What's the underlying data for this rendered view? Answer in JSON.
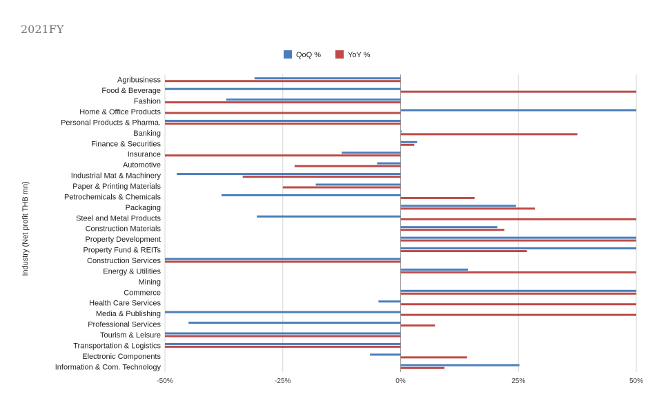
{
  "chart_data": {
    "type": "bar",
    "orientation": "horizontal",
    "title": "2021FY",
    "xlabel": "",
    "ylabel": "Industry (Net profit THB mn)",
    "xlim": [
      -0.5,
      0.5
    ],
    "xticks": [
      -0.5,
      -0.25,
      0,
      0.25,
      0.5
    ],
    "xtick_labels": [
      "-50%",
      "-25%",
      "0%",
      "25%",
      "50%"
    ],
    "grid": "vertical",
    "legend_position": "top",
    "categories": [
      "Agribusiness",
      "Food & Beverage",
      "Fashion",
      "Home & Office Products",
      "Personal Products & Pharma.",
      "Banking",
      "Finance & Securities",
      "Insurance",
      "Automotive",
      "Industrial Mat & Machinery",
      "Paper & Printing Materials",
      "Petrochemicals & Chemicals",
      "Packaging",
      "Steel and Metal Products",
      "Construction Materials",
      "Property Development",
      "Property Fund & REITs",
      "Construction Services",
      "Energy & Utilities",
      "Mining",
      "Commerce",
      "Health Care Services",
      "Media & Publishing",
      "Professional Services",
      "Tourism & Leisure",
      "Transportation & Logistics",
      "Electronic Components",
      "Information & Com. Technology"
    ],
    "series": [
      {
        "name": "QoQ %",
        "color": "#4a7ebb",
        "values": [
          -0.31,
          -0.5,
          -0.37,
          0.5,
          -0.5,
          0.002,
          0.035,
          -0.125,
          -0.05,
          -0.475,
          -0.18,
          -0.38,
          0.245,
          -0.305,
          0.205,
          0.5,
          0.5,
          -0.5,
          0.143,
          null,
          0.5,
          -0.047,
          -0.5,
          -0.45,
          -0.5,
          -0.5,
          -0.065,
          0.252
        ]
      },
      {
        "name": "YoY %",
        "color": "#be4b48",
        "values": [
          -0.5,
          0.5,
          -0.5,
          -0.5,
          -0.5,
          0.375,
          0.029,
          -0.5,
          -0.225,
          -0.335,
          -0.25,
          0.157,
          0.285,
          0.5,
          0.22,
          0.5,
          0.268,
          -0.5,
          0.5,
          null,
          0.5,
          0.5,
          0.5,
          0.073,
          -0.5,
          -0.5,
          0.141,
          0.093
        ]
      }
    ]
  }
}
